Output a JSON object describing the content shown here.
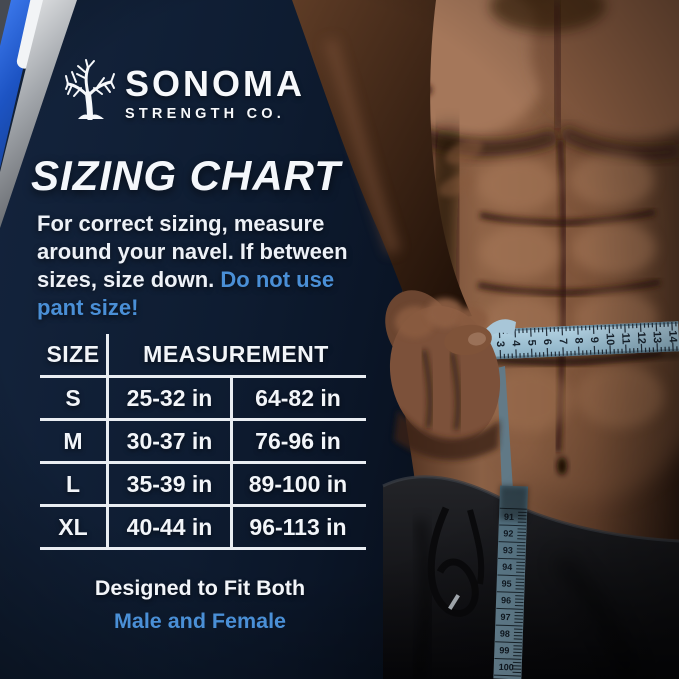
{
  "colors": {
    "background_navy": "#0e1c31",
    "accent_blue": "#4a8fd6",
    "stripe_blue": "#2a63d6",
    "stripe_silver": "#b9bcc1",
    "table_line_white": "#e9edf2",
    "tape_blue": "#9fc2d5"
  },
  "brand": {
    "name": "SONOMA",
    "subtitle": "STRENGTH CO."
  },
  "heading": "SIZING CHART",
  "intro": {
    "text": "For correct sizing, measure\naround your navel. If between\nsizes, size down. ",
    "highlight": "Do not use\npant size!"
  },
  "size_table": {
    "col_size_header": "SIZE",
    "col_measurement_header": "MEASUREMENT",
    "rows": [
      {
        "size": "S",
        "m1": "25-32 in",
        "m2": "64-82 in"
      },
      {
        "size": "M",
        "m1": "30-37 in",
        "m2": "76-96 in"
      },
      {
        "size": "L",
        "m1": "35-39 in",
        "m2": "89-100 in"
      },
      {
        "size": "XL",
        "m1": "40-44 in",
        "m2": "96-113 in"
      }
    ]
  },
  "footer": {
    "line1": "Designed to Fit Both",
    "line2": "Male and Female"
  },
  "photo": {
    "description": "shirtless muscular torso measuring waist with a blue measuring tape",
    "waist_tape_numbers": [
      3,
      4,
      5,
      6,
      7,
      8,
      9,
      10,
      11,
      12,
      13,
      14
    ],
    "hanging_tape_numbers": [
      91,
      92,
      93,
      94,
      95,
      96,
      97,
      98,
      99,
      100
    ]
  },
  "chart_data": {
    "type": "table",
    "title": "SIZING CHART",
    "columns": [
      "SIZE",
      "MEASUREMENT",
      "MEASUREMENT"
    ],
    "rows": [
      [
        "S",
        "25-32 in",
        "64-82 in"
      ],
      [
        "M",
        "30-37 in",
        "76-96 in"
      ],
      [
        "L",
        "35-39 in",
        "89-100 in"
      ],
      [
        "XL",
        "40-44 in",
        "96-113 in"
      ]
    ]
  }
}
